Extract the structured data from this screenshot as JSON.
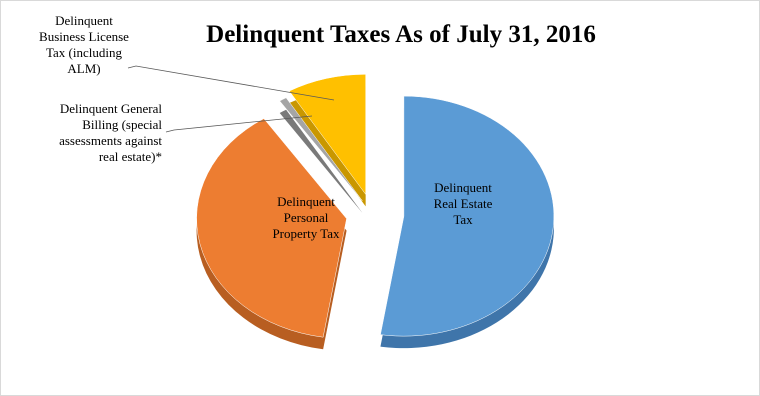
{
  "chart_data": {
    "type": "pie",
    "title": "Delinquent Taxes As of July 31, 2016",
    "style": "3d-exploded",
    "slices": [
      {
        "name": "Delinquent Real Estate Tax",
        "label_lines": [
          "Delinquent",
          "Real Estate",
          "Tax"
        ],
        "value": 52.5,
        "color": "#5b9bd5",
        "side_color": "#3f75aa"
      },
      {
        "name": "Delinquent Personal Property Tax",
        "label_lines": [
          "Delinquent",
          "Personal",
          "Property Tax"
        ],
        "value": 38.2,
        "color": "#ed7d31",
        "side_color": "#b85e21"
      },
      {
        "name": "Delinquent General Billing (special assessments against real estate)*",
        "label_lines": [
          "Delinquent General",
          "Billing (special",
          "assessments against",
          "real estate)*"
        ],
        "value": 0.8,
        "color": "#a5a5a5",
        "side_color": "#7a7a7a"
      },
      {
        "name": "Delinquent Business License Tax (including ALM)",
        "label_lines": [
          "Delinquent",
          "Business License",
          "Tax (including",
          "ALM)"
        ],
        "value": 8.5,
        "color": "#ffc000",
        "side_color": "#c99700"
      }
    ]
  }
}
